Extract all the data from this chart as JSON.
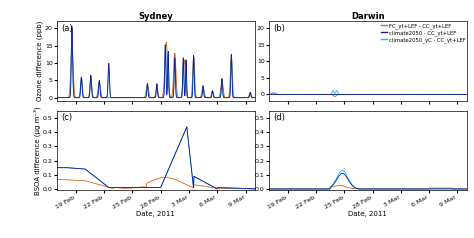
{
  "title_left": "Sydney",
  "title_right": "Darwin",
  "panel_labels": [
    "(a)",
    "(b)",
    "(c)",
    "(d)"
  ],
  "ylabel_ozone": "Ozone difference (ppb)",
  "ylabel_bsoa": "BSOA difference (μg m⁻³)",
  "xlabel": "Date, 2011",
  "legend_entries": [
    "FC_γt+LEF - CC_γt+LEF",
    "climate2050 - CC_γt+LEF",
    "climate2050_γC - CC_γt+LEF"
  ],
  "colors": {
    "orange": "#d4621a",
    "dark_blue": "#1a1a8c",
    "light_blue": "#00bfff"
  },
  "xtick_labels": [
    "19 Feb",
    "22 Feb",
    "25 Feb",
    "28 Feb",
    "3 Mar",
    "6 Mar",
    "9 Mar"
  ],
  "ylim_ozone_a": [
    -1,
    22
  ],
  "ylim_ozone_b": [
    -2,
    22
  ],
  "ylim_bsoa_c": [
    -0.01,
    0.55
  ],
  "ylim_bsoa_d": [
    -0.01,
    0.55
  ],
  "yticks_ozone": [
    0,
    5,
    10,
    15,
    20
  ],
  "yticks_bsoa": [
    0.0,
    0.1,
    0.2,
    0.3,
    0.4,
    0.5
  ]
}
